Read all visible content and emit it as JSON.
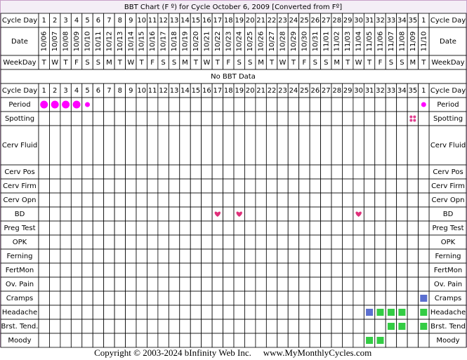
{
  "title": "BBT Chart (F º) for Cycle October 6, 2009  [Converted from Fº]",
  "header": {
    "cycle_day_label": "Cycle Day",
    "date_label": "Date",
    "weekday_label": "WeekDay",
    "cycle_days": [
      1,
      2,
      3,
      4,
      5,
      6,
      7,
      8,
      9,
      10,
      11,
      12,
      13,
      14,
      15,
      16,
      17,
      18,
      19,
      20,
      21,
      22,
      23,
      24,
      25,
      26,
      27,
      28,
      29,
      30,
      31,
      32,
      33,
      34,
      35,
      1
    ],
    "dates": [
      "10/06",
      "10/07",
      "10/08",
      "10/09",
      "10/10",
      "10/11",
      "10/12",
      "10/13",
      "10/14",
      "10/15",
      "10/16",
      "10/17",
      "10/18",
      "10/19",
      "10/20",
      "10/21",
      "10/22",
      "10/23",
      "10/24",
      "10/25",
      "10/26",
      "10/27",
      "10/28",
      "10/29",
      "10/30",
      "10/31",
      "11/01",
      "11/02",
      "11/03",
      "11/04",
      "11/05",
      "11/06",
      "11/07",
      "11/08",
      "11/09",
      "11/10"
    ],
    "weekdays": [
      "T",
      "W",
      "T",
      "F",
      "S",
      "S",
      "M",
      "T",
      "W",
      "T",
      "F",
      "S",
      "S",
      "M",
      "T",
      "W",
      "T",
      "F",
      "S",
      "S",
      "M",
      "T",
      "W",
      "T",
      "F",
      "S",
      "S",
      "M",
      "T",
      "W",
      "T",
      "F",
      "S",
      "S",
      "M",
      "T"
    ]
  },
  "no_data": "No BBT Data",
  "rows": [
    {
      "label": "Period",
      "label_right": "Period",
      "marks": [
        {
          "day": 0,
          "kind": "dot-large"
        },
        {
          "day": 1,
          "kind": "dot-large"
        },
        {
          "day": 2,
          "kind": "dot-large"
        },
        {
          "day": 3,
          "kind": "dot-large"
        },
        {
          "day": 4,
          "kind": "dot-small"
        },
        {
          "day": 35,
          "kind": "dot-small"
        }
      ]
    },
    {
      "label": "Spotting",
      "label_right": "Spotting",
      "marks": [
        {
          "day": 34,
          "kind": "spot"
        }
      ]
    },
    {
      "label": "Cerv Fluid",
      "label_right": "Cerv Fluid",
      "tall": true,
      "marks": []
    },
    {
      "label": "Cerv Pos",
      "label_right": "Cerv Pos",
      "marks": []
    },
    {
      "label": "Cerv Firm",
      "label_right": "Cerv Firm",
      "marks": []
    },
    {
      "label": "Cerv Opn",
      "label_right": "Cerv Opn",
      "marks": []
    },
    {
      "label": "BD",
      "label_right": "BD",
      "marks": [
        {
          "day": 16,
          "kind": "heart"
        },
        {
          "day": 18,
          "kind": "heart"
        },
        {
          "day": 29,
          "kind": "heart"
        }
      ]
    },
    {
      "label": "Preg Test",
      "label_right": "Preg Test",
      "marks": []
    },
    {
      "label": "OPK",
      "label_right": "OPK",
      "marks": []
    },
    {
      "label": "Ferning",
      "label_right": "Ferning",
      "marks": []
    },
    {
      "label": "FertMon",
      "label_right": "FertMon",
      "marks": []
    },
    {
      "label": "Ov. Pain",
      "label_right": "Ov. Pain",
      "marks": []
    },
    {
      "label": "Cramps",
      "label_right": "Cramps",
      "marks": [
        {
          "day": 35,
          "kind": "blue"
        }
      ]
    },
    {
      "label": "Headache",
      "label_right": "Headache",
      "marks": [
        {
          "day": 30,
          "kind": "blue"
        },
        {
          "day": 31,
          "kind": "green"
        },
        {
          "day": 32,
          "kind": "green"
        },
        {
          "day": 33,
          "kind": "green"
        },
        {
          "day": 35,
          "kind": "green"
        }
      ]
    },
    {
      "label": "Brst. Tend.",
      "label_right": "Brst. Tend",
      "marks": [
        {
          "day": 32,
          "kind": "green"
        },
        {
          "day": 33,
          "kind": "green"
        },
        {
          "day": 35,
          "kind": "green"
        }
      ]
    },
    {
      "label": "Moody",
      "label_right": "Moody",
      "marks": [
        {
          "day": 30,
          "kind": "green"
        },
        {
          "day": 31,
          "kind": "green"
        }
      ]
    }
  ],
  "footer": {
    "copyright": "Copyright © 2003-2024 bInfinity Web Inc.",
    "site": "www.MyMonthlyCycles.com"
  }
}
